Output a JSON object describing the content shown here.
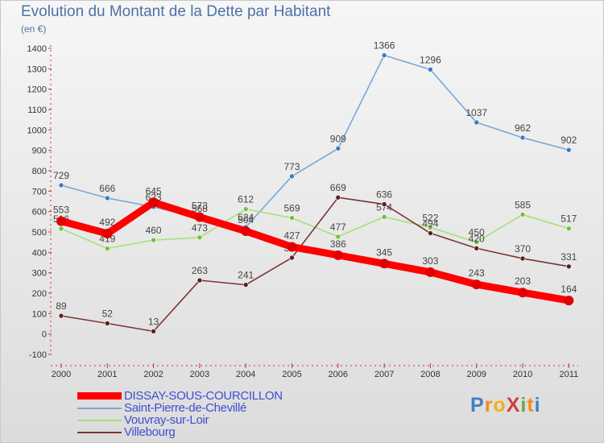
{
  "header": {
    "title": "Evolution du Montant de la Dette par Habitant",
    "subtitle": "(en €)"
  },
  "logo": {
    "text": "ProXiti",
    "letters": [
      "P",
      "r",
      "o",
      "X",
      "i",
      "t",
      "i"
    ],
    "colors": [
      "#3c7fcf",
      "#f28b1c",
      "#f2b01c",
      "#d03d3d",
      "#6aa83a",
      "#f28b1c",
      "#3c7fcf"
    ]
  },
  "chart_data": {
    "type": "line",
    "x": [
      "2000",
      "2001",
      "2002",
      "2003",
      "2004",
      "2005",
      "2006",
      "2007",
      "2008",
      "2009",
      "2010",
      "2011"
    ],
    "ylim": [
      -100,
      1400
    ],
    "yticks": [
      "-100",
      "0",
      "100",
      "200",
      "300",
      "400",
      "500",
      "600",
      "700",
      "800",
      "900",
      "1000",
      "1100",
      "1200",
      "1300",
      "1400"
    ],
    "grid": false,
    "legend_position": "bottom",
    "series": [
      {
        "name": "Saint-Pierre-de-Chevillé",
        "color": "#7aa7d6",
        "marker": "#3a7cc4",
        "values": [
          729,
          666,
          623,
          568,
          524,
          773,
          909,
          1366,
          1296,
          1037,
          962,
          902
        ],
        "labels": [
          "729",
          "666",
          "623",
          "568",
          "524",
          "773",
          "909",
          "1366",
          "1296",
          "1037",
          "962",
          "902"
        ]
      },
      {
        "name": "Vouvray-sur-Loir",
        "color": "#a6e07a",
        "marker": "#6cc23c",
        "values": [
          516,
          419,
          460,
          473,
          612,
          569,
          477,
          574,
          522,
          450,
          585,
          517
        ],
        "labels": [
          "516",
          "419",
          "460",
          "473",
          "612",
          "569",
          "477",
          "574",
          "522",
          "450",
          "585",
          "517"
        ]
      },
      {
        "name": "Villebourg",
        "color": "#7d3434",
        "marker": "#5a1f1f",
        "values": [
          89,
          52,
          13,
          263,
          241,
          374,
          669,
          636,
          494,
          420,
          370,
          331
        ],
        "labels": [
          "89",
          "52",
          "13",
          "263",
          "241",
          "374",
          "669",
          "636",
          "494",
          "420",
          "370",
          "331"
        ]
      },
      {
        "name": "DISSAY-SOUS-COURCILLON",
        "color": "#ff0000",
        "marker": "#e00000",
        "thick": true,
        "values": [
          553,
          492,
          645,
          573,
          504,
          427,
          386,
          345,
          303,
          243,
          203,
          164
        ],
        "labels": [
          "553",
          "492",
          "645",
          "573",
          "504",
          "427",
          "386",
          "345",
          "303",
          "243",
          "203",
          "164"
        ]
      }
    ],
    "legend": [
      {
        "name": "DISSAY-SOUS-COURCILLON",
        "color": "#ff0000",
        "thick": true
      },
      {
        "name": "Saint-Pierre-de-Chevillé",
        "color": "#7aa7d6"
      },
      {
        "name": "Vouvray-sur-Loir",
        "color": "#a6e07a"
      },
      {
        "name": "Villebourg",
        "color": "#7d3434"
      }
    ]
  }
}
